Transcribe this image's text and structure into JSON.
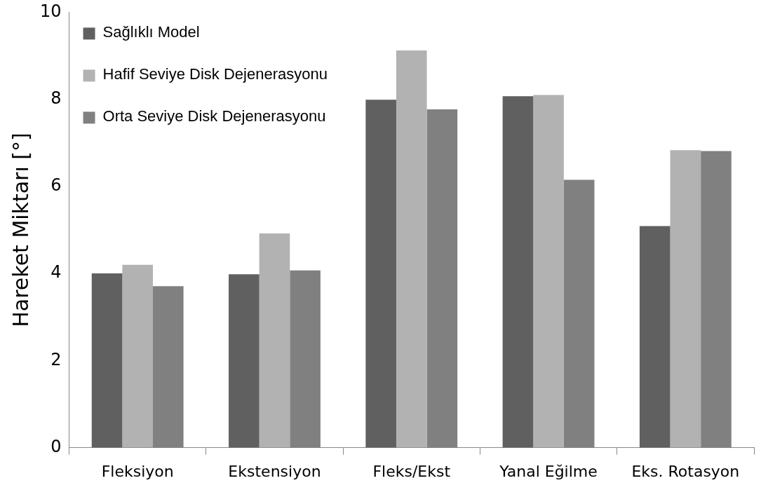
{
  "chart_data": {
    "type": "bar",
    "ylabel": "Hareket Miktarı [°]",
    "categories": [
      "Fleksiyon",
      "Ekstensiyon",
      "Fleks/Ekst",
      "Yanal Eğilme",
      "Eks. Rotasyon"
    ],
    "series": [
      {
        "name": "Sağlıklı Model",
        "color": "#606060",
        "values": [
          4.0,
          3.98,
          7.99,
          8.07,
          5.09
        ]
      },
      {
        "name": "Hafif Seviye Disk Dejenerasyonu",
        "color": "#b2b2b2",
        "values": [
          4.2,
          4.92,
          9.12,
          8.1,
          6.83
        ]
      },
      {
        "name": "Orta Seviye Disk Dejenerasyonu",
        "color": "#808080",
        "values": [
          3.71,
          4.07,
          7.77,
          6.15,
          6.81
        ]
      }
    ],
    "ylim": [
      0,
      10
    ],
    "yticks": [
      0,
      2,
      4,
      6,
      8,
      10
    ],
    "grid": false,
    "legend": "top left"
  }
}
